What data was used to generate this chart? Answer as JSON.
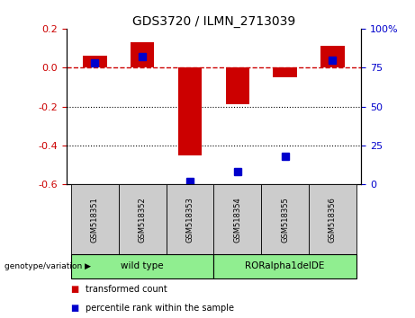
{
  "title": "GDS3720 / ILMN_2713039",
  "samples": [
    "GSM518351",
    "GSM518352",
    "GSM518353",
    "GSM518354",
    "GSM518355",
    "GSM518356"
  ],
  "red_values": [
    0.06,
    0.13,
    -0.45,
    -0.19,
    -0.05,
    0.11
  ],
  "blue_values_pct": [
    78,
    82,
    2,
    8,
    18,
    80
  ],
  "ylim_left": [
    -0.6,
    0.2
  ],
  "ylim_right": [
    0,
    100
  ],
  "yticks_left": [
    -0.6,
    -0.4,
    -0.2,
    0.0,
    0.2
  ],
  "yticks_right": [
    0,
    25,
    50,
    75,
    100
  ],
  "hline_y": 0.0,
  "dotted_lines": [
    -0.2,
    -0.4
  ],
  "bar_width": 0.5,
  "blue_marker_size": 6,
  "red_color": "#CC0000",
  "blue_color": "#0000CC",
  "bg_color": "#ffffff",
  "tick_area_bg": "#cccccc",
  "group_colors": [
    "#90EE90",
    "#90EE90"
  ],
  "group_labels": [
    "wild type",
    "RORalpha1delDE"
  ],
  "group_starts": [
    0,
    3
  ],
  "group_ends": [
    2,
    5
  ],
  "legend_red": "transformed count",
  "legend_blue": "percentile rank within the sample",
  "genotype_label": "genotype/variation",
  "title_fontsize": 10,
  "axis_fontsize": 8,
  "label_fontsize": 7
}
